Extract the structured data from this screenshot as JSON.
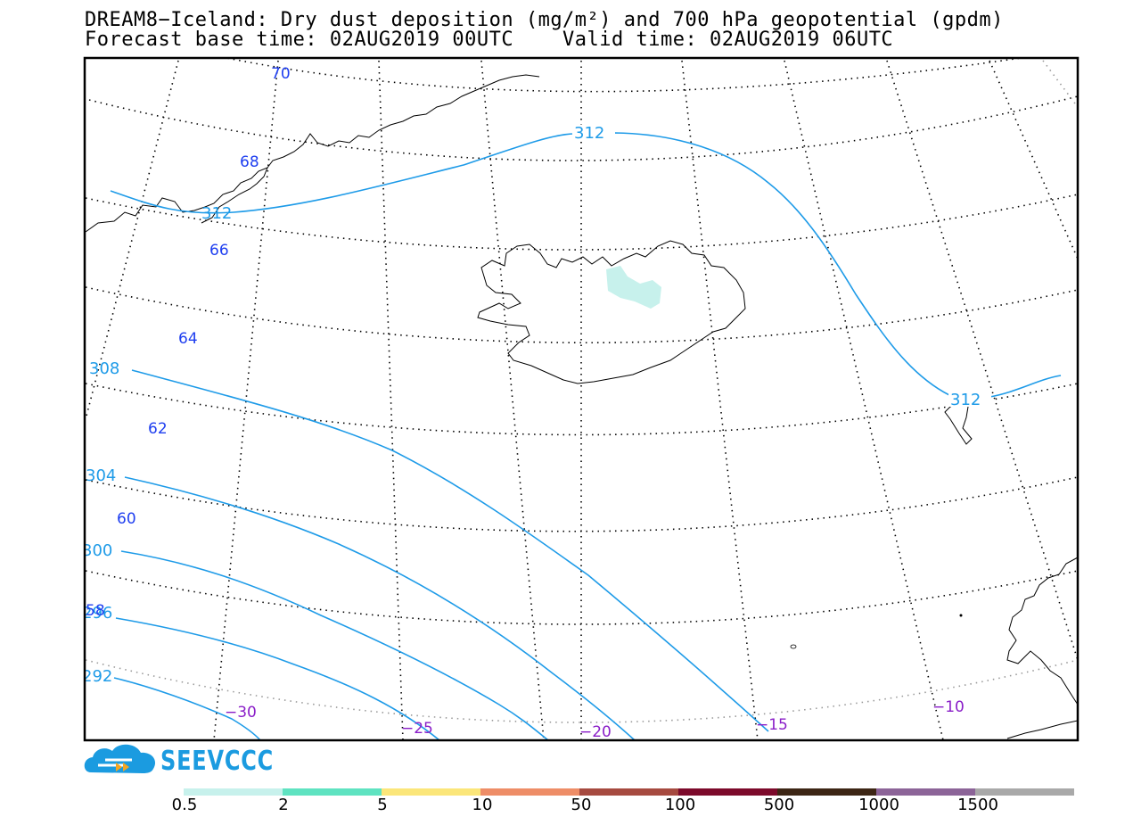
{
  "header": {
    "title_line1": "DREAM8−Iceland: Dry dust deposition (mg/m²) and 700 hPa geopotential (gpdm)",
    "title_line2": "Forecast base time: 02AUG2019 00UTC    Valid time: 02AUG2019 06UTC"
  },
  "map": {
    "latitude_labels": [
      "70",
      "68",
      "66",
      "64",
      "62",
      "60",
      "58"
    ],
    "longitude_labels": [
      "−30",
      "−25",
      "−20",
      "−15",
      "−10"
    ],
    "geopotential_labels": [
      "312",
      "312",
      "312",
      "308",
      "304",
      "300",
      "296",
      "292"
    ],
    "geopotential_color": "#1e9be8",
    "latitude_label_color": "#1f3ff0",
    "longitude_label_color": "#8a1ec8",
    "dust_patch_color": "#c7f1ec"
  },
  "logo": {
    "text": "SEEVCCC",
    "color": "#1b9be0"
  },
  "colorbar": {
    "labels": [
      "0.5",
      "2",
      "5",
      "10",
      "50",
      "100",
      "500",
      "1000",
      "1500"
    ],
    "colors": [
      "#c7f1ec",
      "#5fe3c1",
      "#fbe67a",
      "#ee8d67",
      "#a64a40",
      "#7c0a2b",
      "#3d2615",
      "#8c6498",
      "#a9a9a9"
    ]
  }
}
